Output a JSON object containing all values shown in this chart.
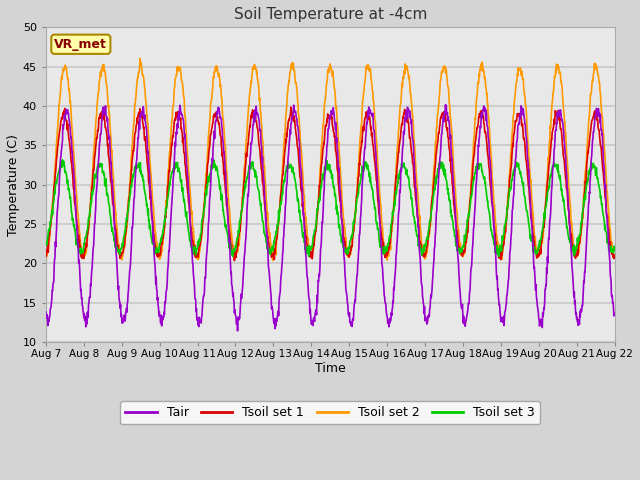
{
  "title": "Soil Temperature at -4cm",
  "xlabel": "Time",
  "ylabel": "Temperature (C)",
  "ylim": [
    10,
    50
  ],
  "x_tick_labels": [
    "Aug 7",
    "Aug 8",
    "Aug 9",
    "Aug 10",
    "Aug 11",
    "Aug 12",
    "Aug 13",
    "Aug 14",
    "Aug 15",
    "Aug 16",
    "Aug 17",
    "Aug 18",
    "Aug 19",
    "Aug 20",
    "Aug 21",
    "Aug 22"
  ],
  "legend_labels": [
    "Tair",
    "Tsoil set 1",
    "Tsoil set 2",
    "Tsoil set 3"
  ],
  "legend_colors": [
    "#9900cc",
    "#dd0000",
    "#ff9900",
    "#00cc00"
  ],
  "annotation_text": "VR_met",
  "annotation_bg": "#ffffaa",
  "annotation_border": "#aa8800",
  "annotation_text_color": "#880000",
  "fig_facecolor": "#d4d4d4",
  "plot_facecolor": "#e8e8e8",
  "grid_color": "#c8c8c8",
  "yticks": [
    10,
    15,
    20,
    25,
    30,
    35,
    40,
    45,
    50
  ],
  "n_days": 15,
  "ppd": 96,
  "lw": 1.2
}
